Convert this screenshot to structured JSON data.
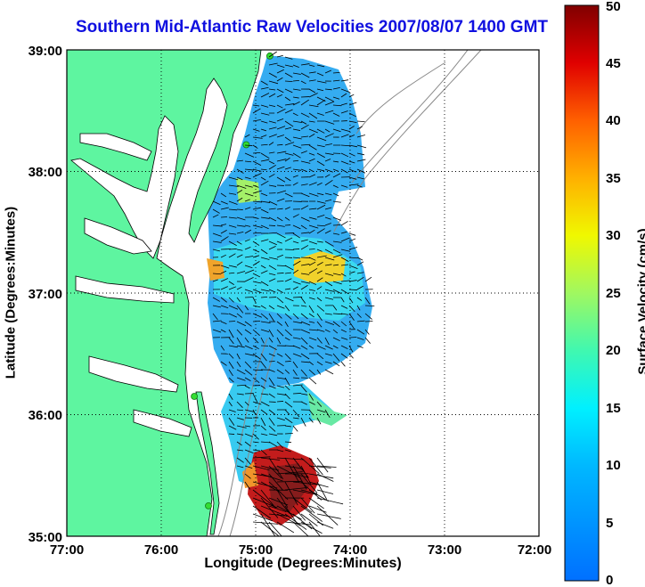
{
  "title": "Southern Mid-Atlantic Raw Velocities 2007/08/07 1400 GMT",
  "x_axis": {
    "label": "Longitude (Degrees:Minutes)",
    "ticks": [
      "77:00",
      "76:00",
      "75:00",
      "74:00",
      "73:00",
      "72:00"
    ]
  },
  "y_axis": {
    "label": "Latitude (Degrees:Minutes)",
    "ticks": [
      "39:00",
      "38:00",
      "37:00",
      "36:00",
      "35:00"
    ]
  },
  "colorbar": {
    "label": "Surface Velocity (cm/s)",
    "ticks": [
      "0",
      "5",
      "10",
      "15",
      "20",
      "25",
      "30",
      "35",
      "40",
      "45",
      "50"
    ],
    "range": [
      0,
      50
    ]
  },
  "colors": {
    "land": "#5ef5a0",
    "ocean": "#ffffff",
    "title": "#1010e0",
    "station": "#33dd33",
    "vector": "#000000",
    "isobath": "#888888"
  },
  "map": {
    "lon_range": [
      -77,
      -72
    ],
    "lat_range": [
      35,
      39
    ],
    "grid": true,
    "grid_style": "dotted",
    "stations": [
      {
        "lon": -74.85,
        "lat": 38.95
      },
      {
        "lon": -75.1,
        "lat": 38.22
      },
      {
        "lon": -75.65,
        "lat": 36.15
      },
      {
        "lon": -75.5,
        "lat": 35.25
      }
    ]
  }
}
